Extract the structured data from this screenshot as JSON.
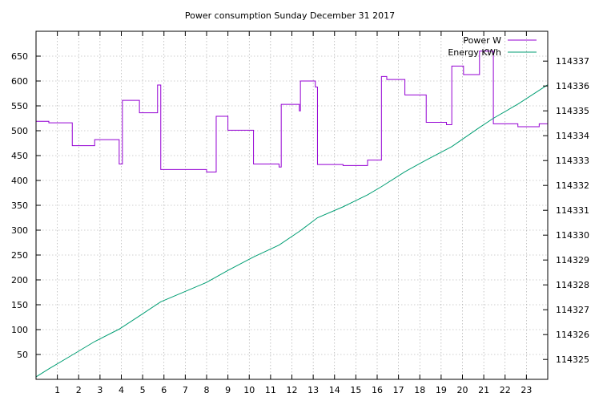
{
  "chart_data": {
    "type": "line",
    "title": "Power consumption Sunday December 31 2017",
    "grid": true,
    "legend_placement": "top-right",
    "x_axis": {
      "range": [
        0,
        24
      ],
      "ticks": [
        1,
        2,
        3,
        4,
        5,
        6,
        7,
        8,
        9,
        10,
        11,
        12,
        13,
        14,
        15,
        16,
        17,
        18,
        19,
        20,
        21,
        22,
        23
      ]
    },
    "y_axis_left": {
      "range": [
        0,
        700
      ],
      "ticks": [
        50,
        100,
        150,
        200,
        250,
        300,
        350,
        400,
        450,
        500,
        550,
        600,
        650
      ]
    },
    "y_axis_right": {
      "range": [
        114324.2,
        114338.2
      ],
      "ticks": [
        114325,
        114326,
        114327,
        114328,
        114329,
        114330,
        114331,
        114332,
        114333,
        114334,
        114335,
        114336,
        114337
      ]
    },
    "series": [
      {
        "name": "Power W",
        "axis": "left",
        "color": "#9400d3",
        "step": true,
        "points": [
          [
            0,
            519
          ],
          [
            0.6,
            516
          ],
          [
            1.7,
            470
          ],
          [
            2.75,
            482
          ],
          [
            3.9,
            433
          ],
          [
            4.05,
            561
          ],
          [
            4.85,
            536
          ],
          [
            5.7,
            592
          ],
          [
            5.85,
            422
          ],
          [
            8.0,
            417
          ],
          [
            8.45,
            529
          ],
          [
            9.0,
            501
          ],
          [
            10.2,
            433
          ],
          [
            11.4,
            427
          ],
          [
            11.5,
            553
          ],
          [
            12.35,
            540
          ],
          [
            12.4,
            600
          ],
          [
            13.1,
            588
          ],
          [
            13.2,
            432
          ],
          [
            14.4,
            430
          ],
          [
            15.55,
            441
          ],
          [
            16.2,
            609
          ],
          [
            16.45,
            603
          ],
          [
            17.3,
            572
          ],
          [
            18.3,
            517
          ],
          [
            19.25,
            512
          ],
          [
            19.5,
            630
          ],
          [
            20.05,
            613
          ],
          [
            20.8,
            660
          ],
          [
            21.45,
            514
          ],
          [
            22.6,
            508
          ],
          [
            23.6,
            514
          ],
          [
            24.0,
            514
          ]
        ]
      },
      {
        "name": "Energy KWh",
        "axis": "right",
        "color": "#009e73",
        "step": false,
        "points": [
          [
            0,
            114324.3
          ],
          [
            0.6,
            114324.62
          ],
          [
            1.7,
            114325.18
          ],
          [
            2.75,
            114325.72
          ],
          [
            3.9,
            114326.22
          ],
          [
            4.85,
            114326.75
          ],
          [
            5.85,
            114327.32
          ],
          [
            8.0,
            114328.1
          ],
          [
            9.0,
            114328.58
          ],
          [
            10.2,
            114329.12
          ],
          [
            11.4,
            114329.6
          ],
          [
            12.4,
            114330.18
          ],
          [
            13.2,
            114330.7
          ],
          [
            14.4,
            114331.14
          ],
          [
            15.55,
            114331.62
          ],
          [
            16.2,
            114331.95
          ],
          [
            17.3,
            114332.55
          ],
          [
            18.3,
            114333.02
          ],
          [
            19.5,
            114333.56
          ],
          [
            20.8,
            114334.33
          ],
          [
            21.45,
            114334.7
          ],
          [
            22.6,
            114335.27
          ],
          [
            24.0,
            114336.05
          ]
        ]
      }
    ]
  }
}
